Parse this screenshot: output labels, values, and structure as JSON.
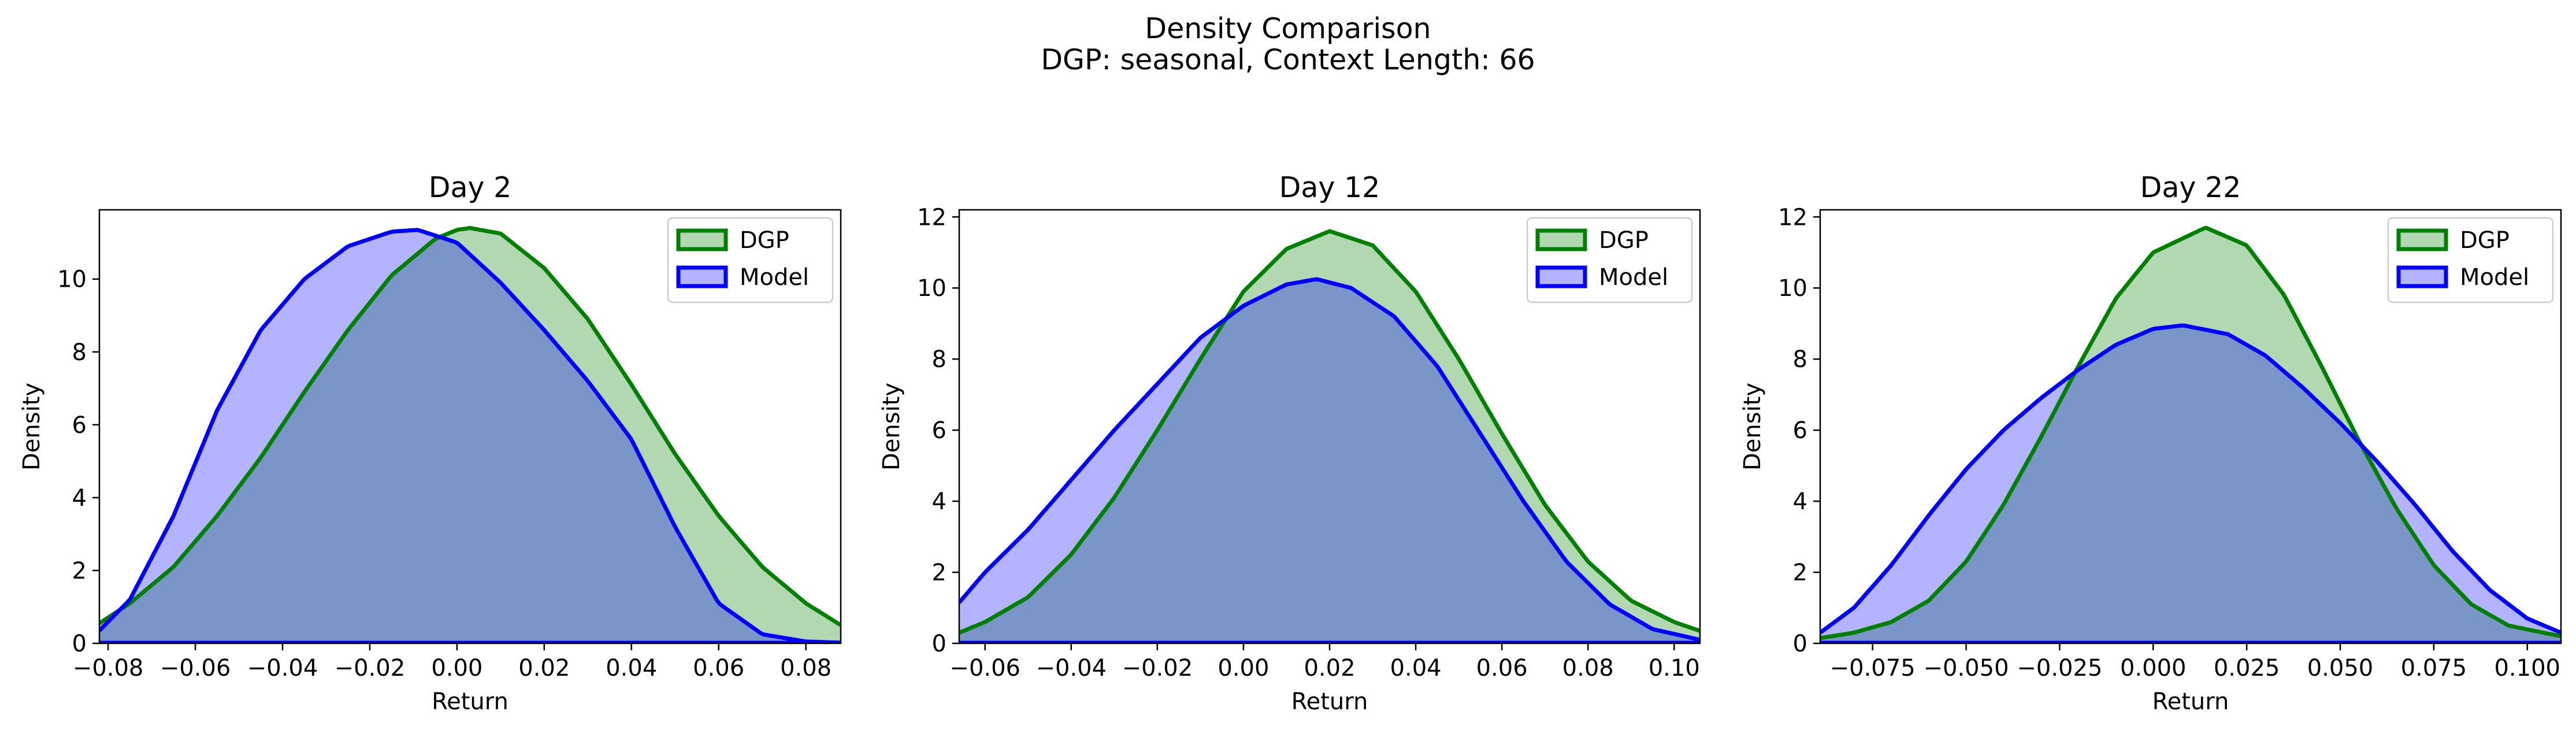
{
  "figure": {
    "title_line1": "Density Comparison",
    "title_line2": "DGP: seasonal, Context Length: 66"
  },
  "colors": {
    "dgp_line": "#008000",
    "dgp_fill": "#b2d8b2",
    "model_line": "#0000ff",
    "model_fill": "#b3b3ff",
    "overlap_fill": "#7a96c8"
  },
  "chart_data": [
    {
      "type": "area",
      "title": "Day 2",
      "xlabel": "Return",
      "ylabel": "Density",
      "xlim": [
        -0.082,
        0.088
      ],
      "ylim": [
        0,
        11.9
      ],
      "xticks": [
        -0.08,
        -0.06,
        -0.04,
        -0.02,
        0.0,
        0.02,
        0.04,
        0.06,
        0.08
      ],
      "xtick_labels": [
        "−0.08",
        "−0.06",
        "−0.04",
        "−0.02",
        "0.00",
        "0.02",
        "0.04",
        "0.06",
        "0.08"
      ],
      "yticks": [
        0,
        2,
        4,
        6,
        8,
        10
      ],
      "ytick_labels": [
        "0",
        "2",
        "4",
        "6",
        "8",
        "10"
      ],
      "legend": {
        "position": "upper right",
        "entries": [
          "DGP",
          "Model"
        ]
      },
      "series": [
        {
          "name": "DGP",
          "x": [
            -0.082,
            -0.075,
            -0.065,
            -0.055,
            -0.045,
            -0.035,
            -0.025,
            -0.015,
            -0.005,
            0.0,
            0.003,
            0.01,
            0.02,
            0.03,
            0.04,
            0.05,
            0.06,
            0.07,
            0.08,
            0.088
          ],
          "y": [
            0.55,
            1.1,
            2.1,
            3.5,
            5.1,
            6.9,
            8.6,
            10.1,
            11.1,
            11.35,
            11.4,
            11.25,
            10.3,
            8.9,
            7.1,
            5.2,
            3.5,
            2.1,
            1.1,
            0.5
          ]
        },
        {
          "name": "Model",
          "x": [
            -0.082,
            -0.075,
            -0.065,
            -0.055,
            -0.045,
            -0.035,
            -0.025,
            -0.015,
            -0.009,
            0.0,
            0.01,
            0.02,
            0.03,
            0.04,
            0.05,
            0.06,
            0.07,
            0.08,
            0.088
          ],
          "y": [
            0.35,
            1.2,
            3.5,
            6.4,
            8.6,
            10.0,
            10.9,
            11.3,
            11.35,
            11.0,
            9.9,
            8.6,
            7.2,
            5.6,
            3.2,
            1.1,
            0.25,
            0.05,
            0.02
          ]
        }
      ]
    },
    {
      "type": "area",
      "title": "Day 12",
      "xlabel": "Return",
      "ylabel": "Density",
      "xlim": [
        -0.066,
        0.106
      ],
      "ylim": [
        0,
        12.2
      ],
      "xticks": [
        -0.06,
        -0.04,
        -0.02,
        0.0,
        0.02,
        0.04,
        0.06,
        0.08,
        0.1
      ],
      "xtick_labels": [
        "−0.06",
        "−0.04",
        "−0.02",
        "0.00",
        "0.02",
        "0.04",
        "0.06",
        "0.08",
        "0.10"
      ],
      "yticks": [
        0,
        2,
        4,
        6,
        8,
        10,
        12
      ],
      "ytick_labels": [
        "0",
        "2",
        "4",
        "6",
        "8",
        "10",
        "12"
      ],
      "legend": {
        "position": "upper right",
        "entries": [
          "DGP",
          "Model"
        ]
      },
      "series": [
        {
          "name": "DGP",
          "x": [
            -0.066,
            -0.06,
            -0.05,
            -0.04,
            -0.03,
            -0.02,
            -0.01,
            0.0,
            0.01,
            0.02,
            0.03,
            0.04,
            0.05,
            0.06,
            0.07,
            0.08,
            0.09,
            0.1,
            0.106
          ],
          "y": [
            0.3,
            0.6,
            1.3,
            2.5,
            4.1,
            6.0,
            8.0,
            9.9,
            11.1,
            11.6,
            11.2,
            9.9,
            8.0,
            5.9,
            3.9,
            2.3,
            1.2,
            0.6,
            0.35
          ]
        },
        {
          "name": "Model",
          "x": [
            -0.066,
            -0.06,
            -0.05,
            -0.04,
            -0.03,
            -0.02,
            -0.01,
            0.0,
            0.01,
            0.017,
            0.025,
            0.035,
            0.045,
            0.055,
            0.065,
            0.075,
            0.085,
            0.095,
            0.106
          ],
          "y": [
            1.15,
            2.0,
            3.2,
            4.6,
            6.0,
            7.3,
            8.6,
            9.5,
            10.1,
            10.25,
            10.0,
            9.2,
            7.8,
            5.9,
            4.0,
            2.3,
            1.1,
            0.4,
            0.1
          ]
        }
      ]
    },
    {
      "type": "area",
      "title": "Day 22",
      "xlabel": "Return",
      "ylabel": "Density",
      "xlim": [
        -0.089,
        0.109
      ],
      "ylim": [
        0,
        12.2
      ],
      "xticks": [
        -0.075,
        -0.05,
        -0.025,
        0.0,
        0.025,
        0.05,
        0.075,
        0.1
      ],
      "xtick_labels": [
        "−0.075",
        "−0.050",
        "−0.025",
        "0.000",
        "0.025",
        "0.050",
        "0.075",
        "0.100"
      ],
      "yticks": [
        0,
        2,
        4,
        6,
        8,
        10,
        12
      ],
      "ytick_labels": [
        "0",
        "2",
        "4",
        "6",
        "8",
        "10",
        "12"
      ],
      "legend": {
        "position": "upper right",
        "entries": [
          "DGP",
          "Model"
        ]
      },
      "series": [
        {
          "name": "DGP",
          "x": [
            -0.089,
            -0.08,
            -0.07,
            -0.06,
            -0.05,
            -0.04,
            -0.03,
            -0.02,
            -0.01,
            0.0,
            0.014,
            0.025,
            0.035,
            0.045,
            0.055,
            0.065,
            0.075,
            0.085,
            0.095,
            0.109
          ],
          "y": [
            0.15,
            0.3,
            0.6,
            1.2,
            2.3,
            3.9,
            5.8,
            7.8,
            9.7,
            11.0,
            11.7,
            11.2,
            9.8,
            7.8,
            5.7,
            3.8,
            2.2,
            1.1,
            0.5,
            0.2
          ]
        },
        {
          "name": "Model",
          "x": [
            -0.089,
            -0.08,
            -0.07,
            -0.06,
            -0.05,
            -0.04,
            -0.03,
            -0.02,
            -0.01,
            0.0,
            0.008,
            0.02,
            0.03,
            0.04,
            0.05,
            0.06,
            0.07,
            0.08,
            0.09,
            0.1,
            0.109
          ],
          "y": [
            0.3,
            1.0,
            2.2,
            3.6,
            4.9,
            6.0,
            6.9,
            7.7,
            8.4,
            8.85,
            8.95,
            8.7,
            8.1,
            7.2,
            6.2,
            5.1,
            3.9,
            2.6,
            1.5,
            0.7,
            0.3
          ]
        }
      ]
    }
  ]
}
